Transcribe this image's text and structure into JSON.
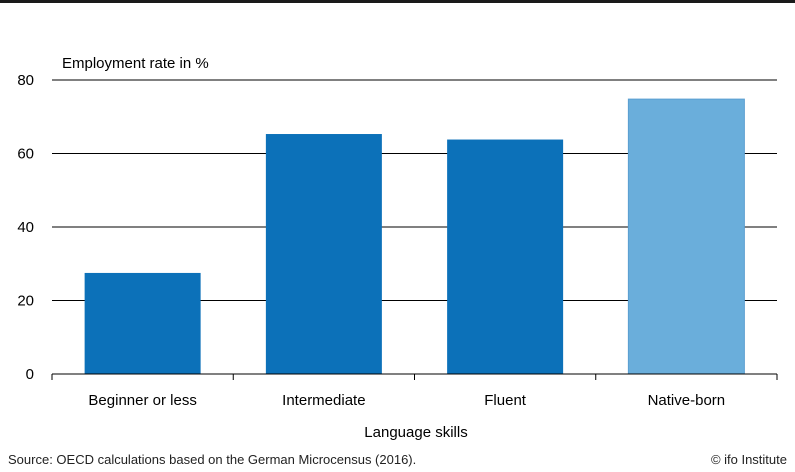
{
  "chart_data": {
    "type": "bar",
    "ylabel": "Employment rate in %",
    "xlabel": "Language skills",
    "categories": [
      "Beginner or less",
      "Intermediate",
      "Fluent",
      "Native-born"
    ],
    "values": [
      27.5,
      65.3,
      63.8,
      74.8
    ],
    "bar_colors": [
      "#0c71b9",
      "#0c71b9",
      "#0c71b9",
      "#6aaedb"
    ],
    "ylim": [
      0,
      80
    ],
    "yticks": [
      0,
      20,
      40,
      60,
      80
    ],
    "grid": true
  },
  "footer": {
    "source": "Source: OECD calculations based on the German Microcensus (2016).",
    "credit": "© ifo Institute"
  }
}
